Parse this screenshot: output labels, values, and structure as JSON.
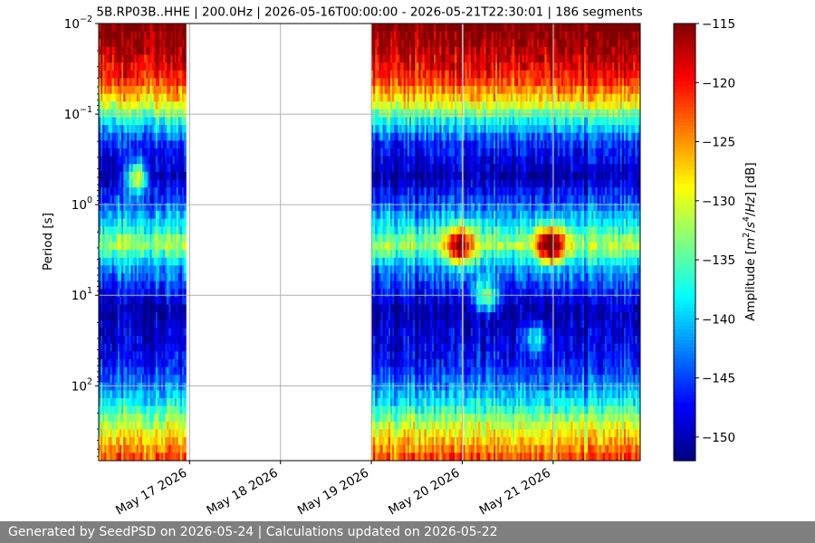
{
  "chart_data": {
    "type": "heatmap",
    "title": "5B.RP03B..HHE | 200.0Hz | 2026-05-16T00:00:00 - 2026-05-21T22:30:01 | 186 segments",
    "ylabel": "Period [s]",
    "colorbar_label_parts": [
      "Amplitude [",
      "m",
      "2",
      "/",
      "s",
      "4",
      "/",
      "Hz",
      "] [dB]"
    ],
    "colorbar_range": [
      -152,
      -115
    ],
    "colorbar_ticks": [
      -115,
      -120,
      -125,
      -130,
      -135,
      -140,
      -145,
      -150
    ],
    "colormap": "jet",
    "y_scale": "log",
    "y_inverted": true,
    "y_range": [
      0.01,
      670
    ],
    "y_ticks": [
      {
        "exp": "-2",
        "value": 0.01
      },
      {
        "exp": "-1",
        "value": 0.1
      },
      {
        "exp": "0",
        "value": 1
      },
      {
        "exp": "1",
        "value": 10
      },
      {
        "exp": "2",
        "value": 100
      }
    ],
    "y_tick_base": "10",
    "x_range": [
      "2026-05-16T00:00:00",
      "2026-05-21T23:00:00"
    ],
    "x_ticks": [
      "May 17 2026",
      "May 18 2026",
      "May 19 2026",
      "May 20 2026",
      "May 21 2026"
    ],
    "x_tick_dates": [
      "2026-05-17",
      "2026-05-18",
      "2026-05-19",
      "2026-05-20",
      "2026-05-21"
    ],
    "grid": true,
    "data_blocks": [
      {
        "start": "2026-05-16T00:00:00",
        "end": "2026-05-16T23:00:00"
      },
      {
        "start": "2026-05-19T00:00:00",
        "end": "2026-05-19T23:50:00"
      },
      {
        "start": "2026-05-20T00:15:00",
        "end": "2026-05-20T23:50:00"
      },
      {
        "start": "2026-05-21T00:10:00",
        "end": "2026-05-21T23:00:00"
      }
    ],
    "psd_profile_db": [
      {
        "period": 0.01,
        "db": -114
      },
      {
        "period": 0.02,
        "db": -117
      },
      {
        "period": 0.04,
        "db": -121
      },
      {
        "period": 0.07,
        "db": -128
      },
      {
        "period": 0.12,
        "db": -138
      },
      {
        "period": 0.2,
        "db": -146
      },
      {
        "period": 0.5,
        "db": -151
      },
      {
        "period": 1.5,
        "db": -140
      },
      {
        "period": 2.8,
        "db": -132
      },
      {
        "period": 5,
        "db": -142
      },
      {
        "period": 15,
        "db": -151
      },
      {
        "period": 60,
        "db": -147
      },
      {
        "period": 150,
        "db": -139
      },
      {
        "period": 300,
        "db": -130
      },
      {
        "period": 670,
        "db": -122
      }
    ],
    "features": [
      {
        "time": "2026-05-19T22:00:00",
        "period": 2.8,
        "db": -122
      },
      {
        "time": "2026-05-20T00:10:00",
        "period": 2.8,
        "db": -121
      },
      {
        "time": "2026-05-20T21:45:00",
        "period": 2.8,
        "db": -117
      },
      {
        "time": "2026-05-21T00:30:00",
        "period": 2.8,
        "db": -118
      },
      {
        "time": "2026-05-16T10:00:00",
        "period": 0.5,
        "db": -128
      },
      {
        "time": "2026-05-20T06:00:00",
        "period": 10,
        "db": -131
      },
      {
        "time": "2026-05-20T19:00:00",
        "period": 30,
        "db": -136
      }
    ]
  },
  "footer": {
    "text": "Generated by SeedPSD on 2026-05-24 | Calculations updated on 2026-05-22"
  }
}
